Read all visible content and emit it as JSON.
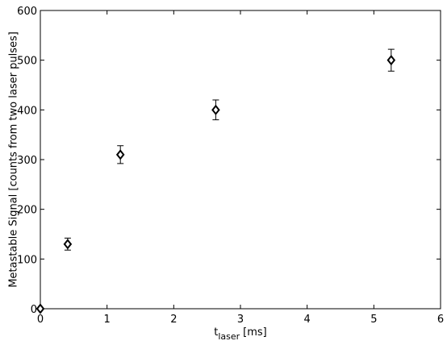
{
  "chart_data": {
    "type": "errorbar",
    "x_label": "t",
    "x_label_sub": "laser",
    "x_label_unit": "[ms]",
    "y_label": "Metastable Signal [counts from two laser pulses]",
    "x": [
      0,
      0.41,
      1.2,
      2.63,
      5.26
    ],
    "values": [
      0,
      130,
      310,
      400,
      500
    ],
    "errors": [
      0,
      12,
      18,
      20,
      22
    ],
    "color": "#000000",
    "xlim": [
      0,
      6
    ],
    "xticks": [
      0,
      1,
      2,
      3,
      4,
      5,
      6
    ],
    "ylim": [
      0,
      600
    ],
    "yticks": [
      0,
      100,
      200,
      300,
      400,
      500,
      600
    ],
    "grid": false
  }
}
